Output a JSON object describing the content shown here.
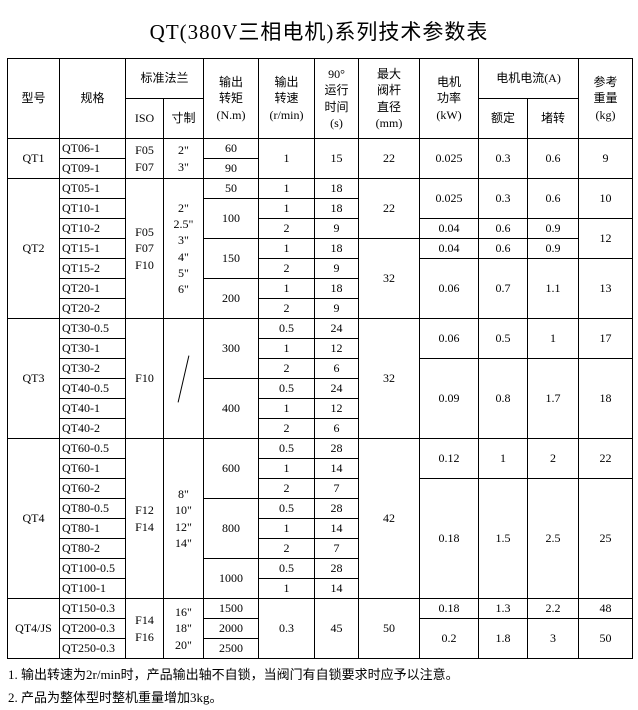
{
  "title": "QT(380V三相电机)系列技术参数表",
  "notes": [
    "1. 输出转速为2r/min时，产品输出轴不自锁，当阀门有自锁要求时应予以注意。",
    "2. 产品为整体型时整机重量增加3kg。"
  ],
  "table": {
    "header_rows": [
      [
        {
          "t": "型号",
          "rs": 2,
          "n": "col-header-model"
        },
        {
          "t": "规格",
          "rs": 2,
          "n": "col-header-spec"
        },
        {
          "t": "标准法兰",
          "cs": 2,
          "n": "col-header-standard-flange"
        },
        {
          "t": "输出\n转矩\n(N.m)",
          "rs": 2,
          "cls": "pre",
          "n": "col-header-output-torque"
        },
        {
          "t": "输出\n转速\n(r/min)",
          "rs": 2,
          "cls": "pre",
          "n": "col-header-output-speed"
        },
        {
          "t": "90°\n运行\n时间\n(s)",
          "rs": 2,
          "cls": "pre",
          "n": "col-header-runtime-90deg"
        },
        {
          "t": "最大\n阀杆\n直径\n(mm)",
          "rs": 2,
          "cls": "pre",
          "n": "col-header-max-stem-diameter"
        },
        {
          "t": "电机\n功率\n(kW)",
          "rs": 2,
          "cls": "pre",
          "n": "col-header-motor-power"
        },
        {
          "t": "电机电流(A)",
          "cs": 2,
          "n": "col-header-motor-current"
        },
        {
          "t": "参考\n重量\n(kg)",
          "rs": 2,
          "cls": "pre",
          "n": "col-header-ref-weight"
        }
      ],
      [
        {
          "t": "ISO",
          "n": "col-header-iso"
        },
        {
          "t": "寸制",
          "n": "col-header-inch"
        },
        {
          "t": "额定",
          "n": "col-header-rated"
        },
        {
          "t": "堵转",
          "n": "col-header-locked-rotor"
        }
      ]
    ],
    "rows": [
      [
        {
          "t": "QT1",
          "rs": 2,
          "n": "model-cell"
        },
        {
          "t": "QT06-1",
          "cls": "left"
        },
        {
          "t": "F05\nF07",
          "rs": 2,
          "cls": "pre"
        },
        {
          "t": "2\"\n3\"",
          "rs": 2,
          "cls": "pre"
        },
        {
          "t": "60"
        },
        {
          "t": "1",
          "rs": 2
        },
        {
          "t": "15",
          "rs": 2
        },
        {
          "t": "22",
          "rs": 2
        },
        {
          "t": "0.025",
          "rs": 2
        },
        {
          "t": "0.3",
          "rs": 2
        },
        {
          "t": "0.6",
          "rs": 2
        },
        {
          "t": "9",
          "rs": 2
        }
      ],
      [
        {
          "t": "QT09-1",
          "cls": "left"
        },
        {
          "t": "90"
        }
      ],
      [
        {
          "t": "QT2",
          "rs": 7,
          "n": "model-cell"
        },
        {
          "t": "QT05-1",
          "cls": "left"
        },
        {
          "t": "F05\nF07\nF10",
          "rs": 7,
          "cls": "pre"
        },
        {
          "t": "2\"\n2.5\"\n3\"\n4\"\n5\"\n6\"",
          "rs": 7,
          "cls": "pre"
        },
        {
          "t": "50"
        },
        {
          "t": "1"
        },
        {
          "t": "18"
        },
        {
          "t": "22",
          "rs": 3
        },
        {
          "t": "0.025",
          "rs": 2
        },
        {
          "t": "0.3",
          "rs": 2
        },
        {
          "t": "0.6",
          "rs": 2
        },
        {
          "t": "10",
          "rs": 2
        }
      ],
      [
        {
          "t": "QT10-1",
          "cls": "left"
        },
        {
          "t": "100",
          "rs": 2
        },
        {
          "t": "1"
        },
        {
          "t": "18"
        }
      ],
      [
        {
          "t": "QT10-2",
          "cls": "left"
        },
        {
          "t": "2"
        },
        {
          "t": "9"
        },
        {
          "t": "0.04"
        },
        {
          "t": "0.6"
        },
        {
          "t": "0.9"
        },
        {
          "t": "12",
          "rs": 2
        }
      ],
      [
        {
          "t": "QT15-1",
          "cls": "left"
        },
        {
          "t": "150",
          "rs": 2
        },
        {
          "t": "1"
        },
        {
          "t": "18"
        },
        {
          "t": "32",
          "rs": 4
        },
        {
          "t": "0.04"
        },
        {
          "t": "0.6"
        },
        {
          "t": "0.9"
        }
      ],
      [
        {
          "t": "QT15-2",
          "cls": "left"
        },
        {
          "t": "2"
        },
        {
          "t": "9"
        },
        {
          "t": "0.06",
          "rs": 3
        },
        {
          "t": "0.7",
          "rs": 3
        },
        {
          "t": "1.1",
          "rs": 3
        },
        {
          "t": "13",
          "rs": 3
        }
      ],
      [
        {
          "t": "QT20-1",
          "cls": "left"
        },
        {
          "t": "200",
          "rs": 2
        },
        {
          "t": "1"
        },
        {
          "t": "18"
        }
      ],
      [
        {
          "t": "QT20-2",
          "cls": "left"
        },
        {
          "t": "2"
        },
        {
          "t": "9"
        }
      ],
      [
        {
          "t": "QT3",
          "rs": 6,
          "n": "model-cell"
        },
        {
          "t": "QT30-0.5",
          "cls": "left"
        },
        {
          "t": "F10",
          "rs": 6
        },
        {
          "t": "/",
          "rs": 6,
          "cls": "slash"
        },
        {
          "t": "300",
          "rs": 3
        },
        {
          "t": "0.5"
        },
        {
          "t": "24"
        },
        {
          "t": "32",
          "rs": 6
        },
        {
          "t": "0.06",
          "rs": 2
        },
        {
          "t": "0.5",
          "rs": 2
        },
        {
          "t": "1",
          "rs": 2
        },
        {
          "t": "17",
          "rs": 2
        }
      ],
      [
        {
          "t": "QT30-1",
          "cls": "left"
        },
        {
          "t": "1"
        },
        {
          "t": "12"
        }
      ],
      [
        {
          "t": "QT30-2",
          "cls": "left"
        },
        {
          "t": "2"
        },
        {
          "t": "6"
        },
        {
          "t": "0.09",
          "rs": 4
        },
        {
          "t": "0.8",
          "rs": 4
        },
        {
          "t": "1.7",
          "rs": 4
        },
        {
          "t": "18",
          "rs": 4
        }
      ],
      [
        {
          "t": "QT40-0.5",
          "cls": "left"
        },
        {
          "t": "400",
          "rs": 3
        },
        {
          "t": "0.5"
        },
        {
          "t": "24"
        }
      ],
      [
        {
          "t": "QT40-1",
          "cls": "left"
        },
        {
          "t": "1"
        },
        {
          "t": "12"
        }
      ],
      [
        {
          "t": "QT40-2",
          "cls": "left"
        },
        {
          "t": "2"
        },
        {
          "t": "6"
        }
      ],
      [
        {
          "t": "QT4",
          "rs": 8,
          "n": "model-cell"
        },
        {
          "t": "QT60-0.5",
          "cls": "left"
        },
        {
          "t": "F12\nF14",
          "rs": 8,
          "cls": "pre"
        },
        {
          "t": "8\"\n10\"\n12\"\n14\"",
          "rs": 8,
          "cls": "pre"
        },
        {
          "t": "600",
          "rs": 3
        },
        {
          "t": "0.5"
        },
        {
          "t": "28"
        },
        {
          "t": "42",
          "rs": 8
        },
        {
          "t": "0.12",
          "rs": 2
        },
        {
          "t": "1",
          "rs": 2
        },
        {
          "t": "2",
          "rs": 2
        },
        {
          "t": "22",
          "rs": 2
        }
      ],
      [
        {
          "t": "QT60-1",
          "cls": "left"
        },
        {
          "t": "1"
        },
        {
          "t": "14"
        }
      ],
      [
        {
          "t": "QT60-2",
          "cls": "left"
        },
        {
          "t": "2"
        },
        {
          "t": "7"
        },
        {
          "t": "0.18",
          "rs": 6
        },
        {
          "t": "1.5",
          "rs": 6
        },
        {
          "t": "2.5",
          "rs": 6
        },
        {
          "t": "25",
          "rs": 6
        }
      ],
      [
        {
          "t": "QT80-0.5",
          "cls": "left"
        },
        {
          "t": "800",
          "rs": 3
        },
        {
          "t": "0.5"
        },
        {
          "t": "28"
        }
      ],
      [
        {
          "t": "QT80-1",
          "cls": "left"
        },
        {
          "t": "1"
        },
        {
          "t": "14"
        }
      ],
      [
        {
          "t": "QT80-2",
          "cls": "left"
        },
        {
          "t": "2"
        },
        {
          "t": "7"
        }
      ],
      [
        {
          "t": "QT100-0.5",
          "cls": "left"
        },
        {
          "t": "1000",
          "rs": 2
        },
        {
          "t": "0.5"
        },
        {
          "t": "28"
        }
      ],
      [
        {
          "t": "QT100-1",
          "cls": "left"
        },
        {
          "t": "1"
        },
        {
          "t": "14"
        }
      ],
      [
        {
          "t": "QT4/JS",
          "rs": 3,
          "n": "model-cell"
        },
        {
          "t": "QT150-0.3",
          "cls": "left"
        },
        {
          "t": "F14\nF16",
          "rs": 3,
          "cls": "pre"
        },
        {
          "t": "16\"\n18\"\n20\"",
          "rs": 3,
          "cls": "pre"
        },
        {
          "t": "1500"
        },
        {
          "t": "0.3",
          "rs": 3
        },
        {
          "t": "45",
          "rs": 3
        },
        {
          "t": "50",
          "rs": 3
        },
        {
          "t": "0.18"
        },
        {
          "t": "1.3"
        },
        {
          "t": "2.2"
        },
        {
          "t": "48"
        }
      ],
      [
        {
          "t": "QT200-0.3",
          "cls": "left"
        },
        {
          "t": "2000"
        },
        {
          "t": "0.2",
          "rs": 2
        },
        {
          "t": "1.8",
          "rs": 2
        },
        {
          "t": "3",
          "rs": 2
        },
        {
          "t": "50",
          "rs": 2
        }
      ],
      [
        {
          "t": "QT250-0.3",
          "cls": "left"
        },
        {
          "t": "2500"
        }
      ]
    ]
  }
}
